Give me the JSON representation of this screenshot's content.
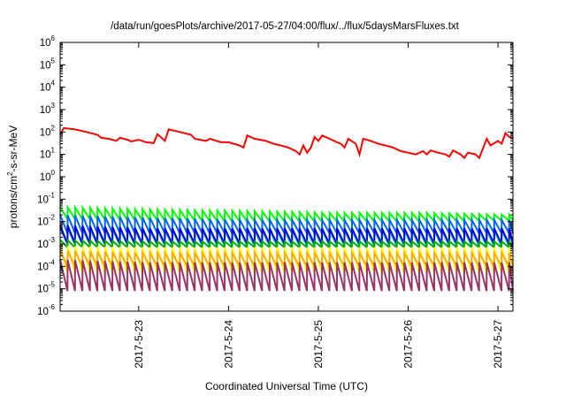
{
  "chart_data": {
    "type": "line",
    "title": "/data/run/goesPlots/archive/2017-05-27/04:00/flux/../flux/5daysMarsFluxes.txt",
    "xlabel": "Coordinated Universal Time (UTC)",
    "ylabel_main": "protons/cm",
    "ylabel_sup": "2",
    "ylabel_tail": "-s-sr-MeV",
    "x_range": [
      "2017-05-22T03:00",
      "2017-05-27T04:00"
    ],
    "y_scale": "log",
    "y_range": [
      1e-06,
      1000000.0
    ],
    "x_ticks": [
      {
        "t": "2017-05-23T00:00",
        "label": "2017-5-23"
      },
      {
        "t": "2017-05-24T00:00",
        "label": "2017-5-24"
      },
      {
        "t": "2017-05-25T00:00",
        "label": "2017-5-25"
      },
      {
        "t": "2017-05-26T00:00",
        "label": "2017-5-26"
      },
      {
        "t": "2017-05-27T00:00",
        "label": "2017-5-27"
      }
    ],
    "y_ticks": [
      {
        "exp": -6,
        "base": "10",
        "sup": "-6"
      },
      {
        "exp": -5,
        "base": "10",
        "sup": "-5"
      },
      {
        "exp": -4,
        "base": "10",
        "sup": "-4"
      },
      {
        "exp": -3,
        "base": "10",
        "sup": "-3"
      },
      {
        "exp": -2,
        "base": "10",
        "sup": "-2"
      },
      {
        "exp": -1,
        "base": "10",
        "sup": "-1"
      },
      {
        "exp": 0,
        "base": "10",
        "sup": "0"
      },
      {
        "exp": 1,
        "base": "10",
        "sup": "1"
      },
      {
        "exp": 2,
        "base": "10",
        "sup": "2"
      },
      {
        "exp": 3,
        "base": "10",
        "sup": "3"
      },
      {
        "exp": 4,
        "base": "10",
        "sup": "4"
      },
      {
        "exp": 5,
        "base": "10",
        "sup": "5"
      },
      {
        "exp": 6,
        "base": "10",
        "sup": "6"
      }
    ],
    "grid": false,
    "legend": "none",
    "series": [
      {
        "color": "#ff0000",
        "cycle_hours": 0,
        "points": [
          [
            "2017-05-22T03:00",
            80
          ],
          [
            "2017-05-22T04:00",
            150
          ],
          [
            "2017-05-22T07:00",
            130
          ],
          [
            "2017-05-22T10:00",
            100
          ],
          [
            "2017-05-22T13:00",
            75
          ],
          [
            "2017-05-22T14:00",
            55
          ],
          [
            "2017-05-22T16:00",
            50
          ],
          [
            "2017-05-22T18:00",
            40
          ],
          [
            "2017-05-22T19:00",
            55
          ],
          [
            "2017-05-22T21:00",
            45
          ],
          [
            "2017-05-22T22:00",
            38
          ],
          [
            "2017-05-23T00:00",
            45
          ],
          [
            "2017-05-23T02:00",
            35
          ],
          [
            "2017-05-23T04:00",
            32
          ],
          [
            "2017-05-23T05:00",
            80
          ],
          [
            "2017-05-23T07:00",
            40
          ],
          [
            "2017-05-23T08:00",
            130
          ],
          [
            "2017-05-23T11:00",
            100
          ],
          [
            "2017-05-23T14:00",
            75
          ],
          [
            "2017-05-23T15:00",
            50
          ],
          [
            "2017-05-23T18:00",
            40
          ],
          [
            "2017-05-23T19:00",
            50
          ],
          [
            "2017-05-23T22:00",
            35
          ],
          [
            "2017-05-24T00:00",
            35
          ],
          [
            "2017-05-24T03:00",
            25
          ],
          [
            "2017-05-24T04:00",
            20
          ],
          [
            "2017-05-24T05:00",
            70
          ],
          [
            "2017-05-24T07:00",
            50
          ],
          [
            "2017-05-24T10:00",
            40
          ],
          [
            "2017-05-24T12:00",
            30
          ],
          [
            "2017-05-24T14:00",
            25
          ],
          [
            "2017-05-24T16:00",
            20
          ],
          [
            "2017-05-24T18:00",
            14
          ],
          [
            "2017-05-24T19:00",
            10
          ],
          [
            "2017-05-24T20:00",
            25
          ],
          [
            "2017-05-24T21:00",
            12
          ],
          [
            "2017-05-24T22:00",
            20
          ],
          [
            "2017-05-24T23:00",
            60
          ],
          [
            "2017-05-25T00:00",
            40
          ],
          [
            "2017-05-25T01:00",
            70
          ],
          [
            "2017-05-25T03:00",
            50
          ],
          [
            "2017-05-25T05:00",
            35
          ],
          [
            "2017-05-25T06:00",
            30
          ],
          [
            "2017-05-25T07:00",
            20
          ],
          [
            "2017-05-25T08:00",
            50
          ],
          [
            "2017-05-25T10:00",
            30
          ],
          [
            "2017-05-25T11:00",
            10
          ],
          [
            "2017-05-25T12:00",
            50
          ],
          [
            "2017-05-25T14:00",
            40
          ],
          [
            "2017-05-25T16:00",
            30
          ],
          [
            "2017-05-25T18:00",
            25
          ],
          [
            "2017-05-25T20:00",
            20
          ],
          [
            "2017-05-25T22:00",
            14
          ],
          [
            "2017-05-26T00:00",
            12
          ],
          [
            "2017-05-26T02:00",
            10
          ],
          [
            "2017-05-26T04:00",
            14
          ],
          [
            "2017-05-26T05:00",
            10
          ],
          [
            "2017-05-26T06:00",
            15
          ],
          [
            "2017-05-26T08:00",
            12
          ],
          [
            "2017-05-26T10:00",
            10
          ],
          [
            "2017-05-26T11:00",
            8
          ],
          [
            "2017-05-26T12:00",
            15
          ],
          [
            "2017-05-26T14:00",
            10
          ],
          [
            "2017-05-26T15:00",
            7
          ],
          [
            "2017-05-26T16:00",
            12
          ],
          [
            "2017-05-26T18:00",
            10
          ],
          [
            "2017-05-26T19:00",
            7
          ],
          [
            "2017-05-26T21:00",
            50
          ],
          [
            "2017-05-26T22:00",
            25
          ],
          [
            "2017-05-27T00:00",
            40
          ],
          [
            "2017-05-27T01:00",
            30
          ],
          [
            "2017-05-27T02:00",
            90
          ],
          [
            "2017-05-27T03:00",
            60
          ],
          [
            "2017-05-27T04:00",
            55
          ]
        ]
      },
      {
        "color": "#00ff00",
        "cycle_hours": 2,
        "high": [
          0.045,
          0.035,
          0.03,
          0.025,
          0.025,
          0.02
        ],
        "low": [
          0.013,
          0.011,
          0.01,
          0.01,
          0.01,
          0.011
        ]
      },
      {
        "color": "#0066ff",
        "cycle_hours": 2,
        "high": [
          0.02,
          0.015,
          0.012,
          0.012,
          0.012,
          0.012
        ],
        "low": [
          0.003,
          0.003,
          0.003,
          0.003,
          0.003,
          0.003
        ]
      },
      {
        "color": "#00c8c8",
        "cycle_hours": 2,
        "high": [
          0.005,
          0.004,
          0.004,
          0.004,
          0.004,
          0.004
        ],
        "low": [
          0.001,
          0.0009,
          0.0008,
          0.0008,
          0.0008,
          0.0008
        ]
      },
      {
        "color": "#0000dd",
        "cycle_hours": 2,
        "high": [
          0.007,
          0.005,
          0.005,
          0.005,
          0.005,
          0.005
        ],
        "low": [
          0.001,
          0.001,
          0.001,
          0.001,
          0.001,
          0.001
        ]
      },
      {
        "color": "#00aa00",
        "cycle_hours": 2,
        "high": [
          0.0015,
          0.0013,
          0.0013,
          0.0013,
          0.0013,
          0.0013
        ],
        "low": [
          0.0007,
          0.0007,
          0.0007,
          0.0007,
          0.0007,
          0.0007
        ]
      },
      {
        "color": "#ffff00",
        "cycle_hours": 2,
        "high": [
          0.0008,
          0.0007,
          0.0007,
          0.0007,
          0.0007,
          0.0007
        ],
        "low": [
          5e-05,
          5e-05,
          5e-05,
          5e-05,
          5e-05,
          5e-05
        ]
      },
      {
        "color": "#ffaa00",
        "cycle_hours": 2,
        "high": [
          0.0005,
          0.0004,
          0.0004,
          0.0004,
          0.0004,
          0.0004
        ],
        "low": [
          0.0001,
          0.0001,
          0.0001,
          0.0001,
          0.0001,
          0.0001
        ]
      },
      {
        "color": "#993366",
        "cycle_hours": 2,
        "high": [
          0.0002,
          0.00015,
          0.00015,
          0.00015,
          0.00015,
          0.00015
        ],
        "low": [
          8e-06,
          8e-06,
          8e-06,
          8e-06,
          8e-06,
          8e-06
        ]
      }
    ]
  }
}
